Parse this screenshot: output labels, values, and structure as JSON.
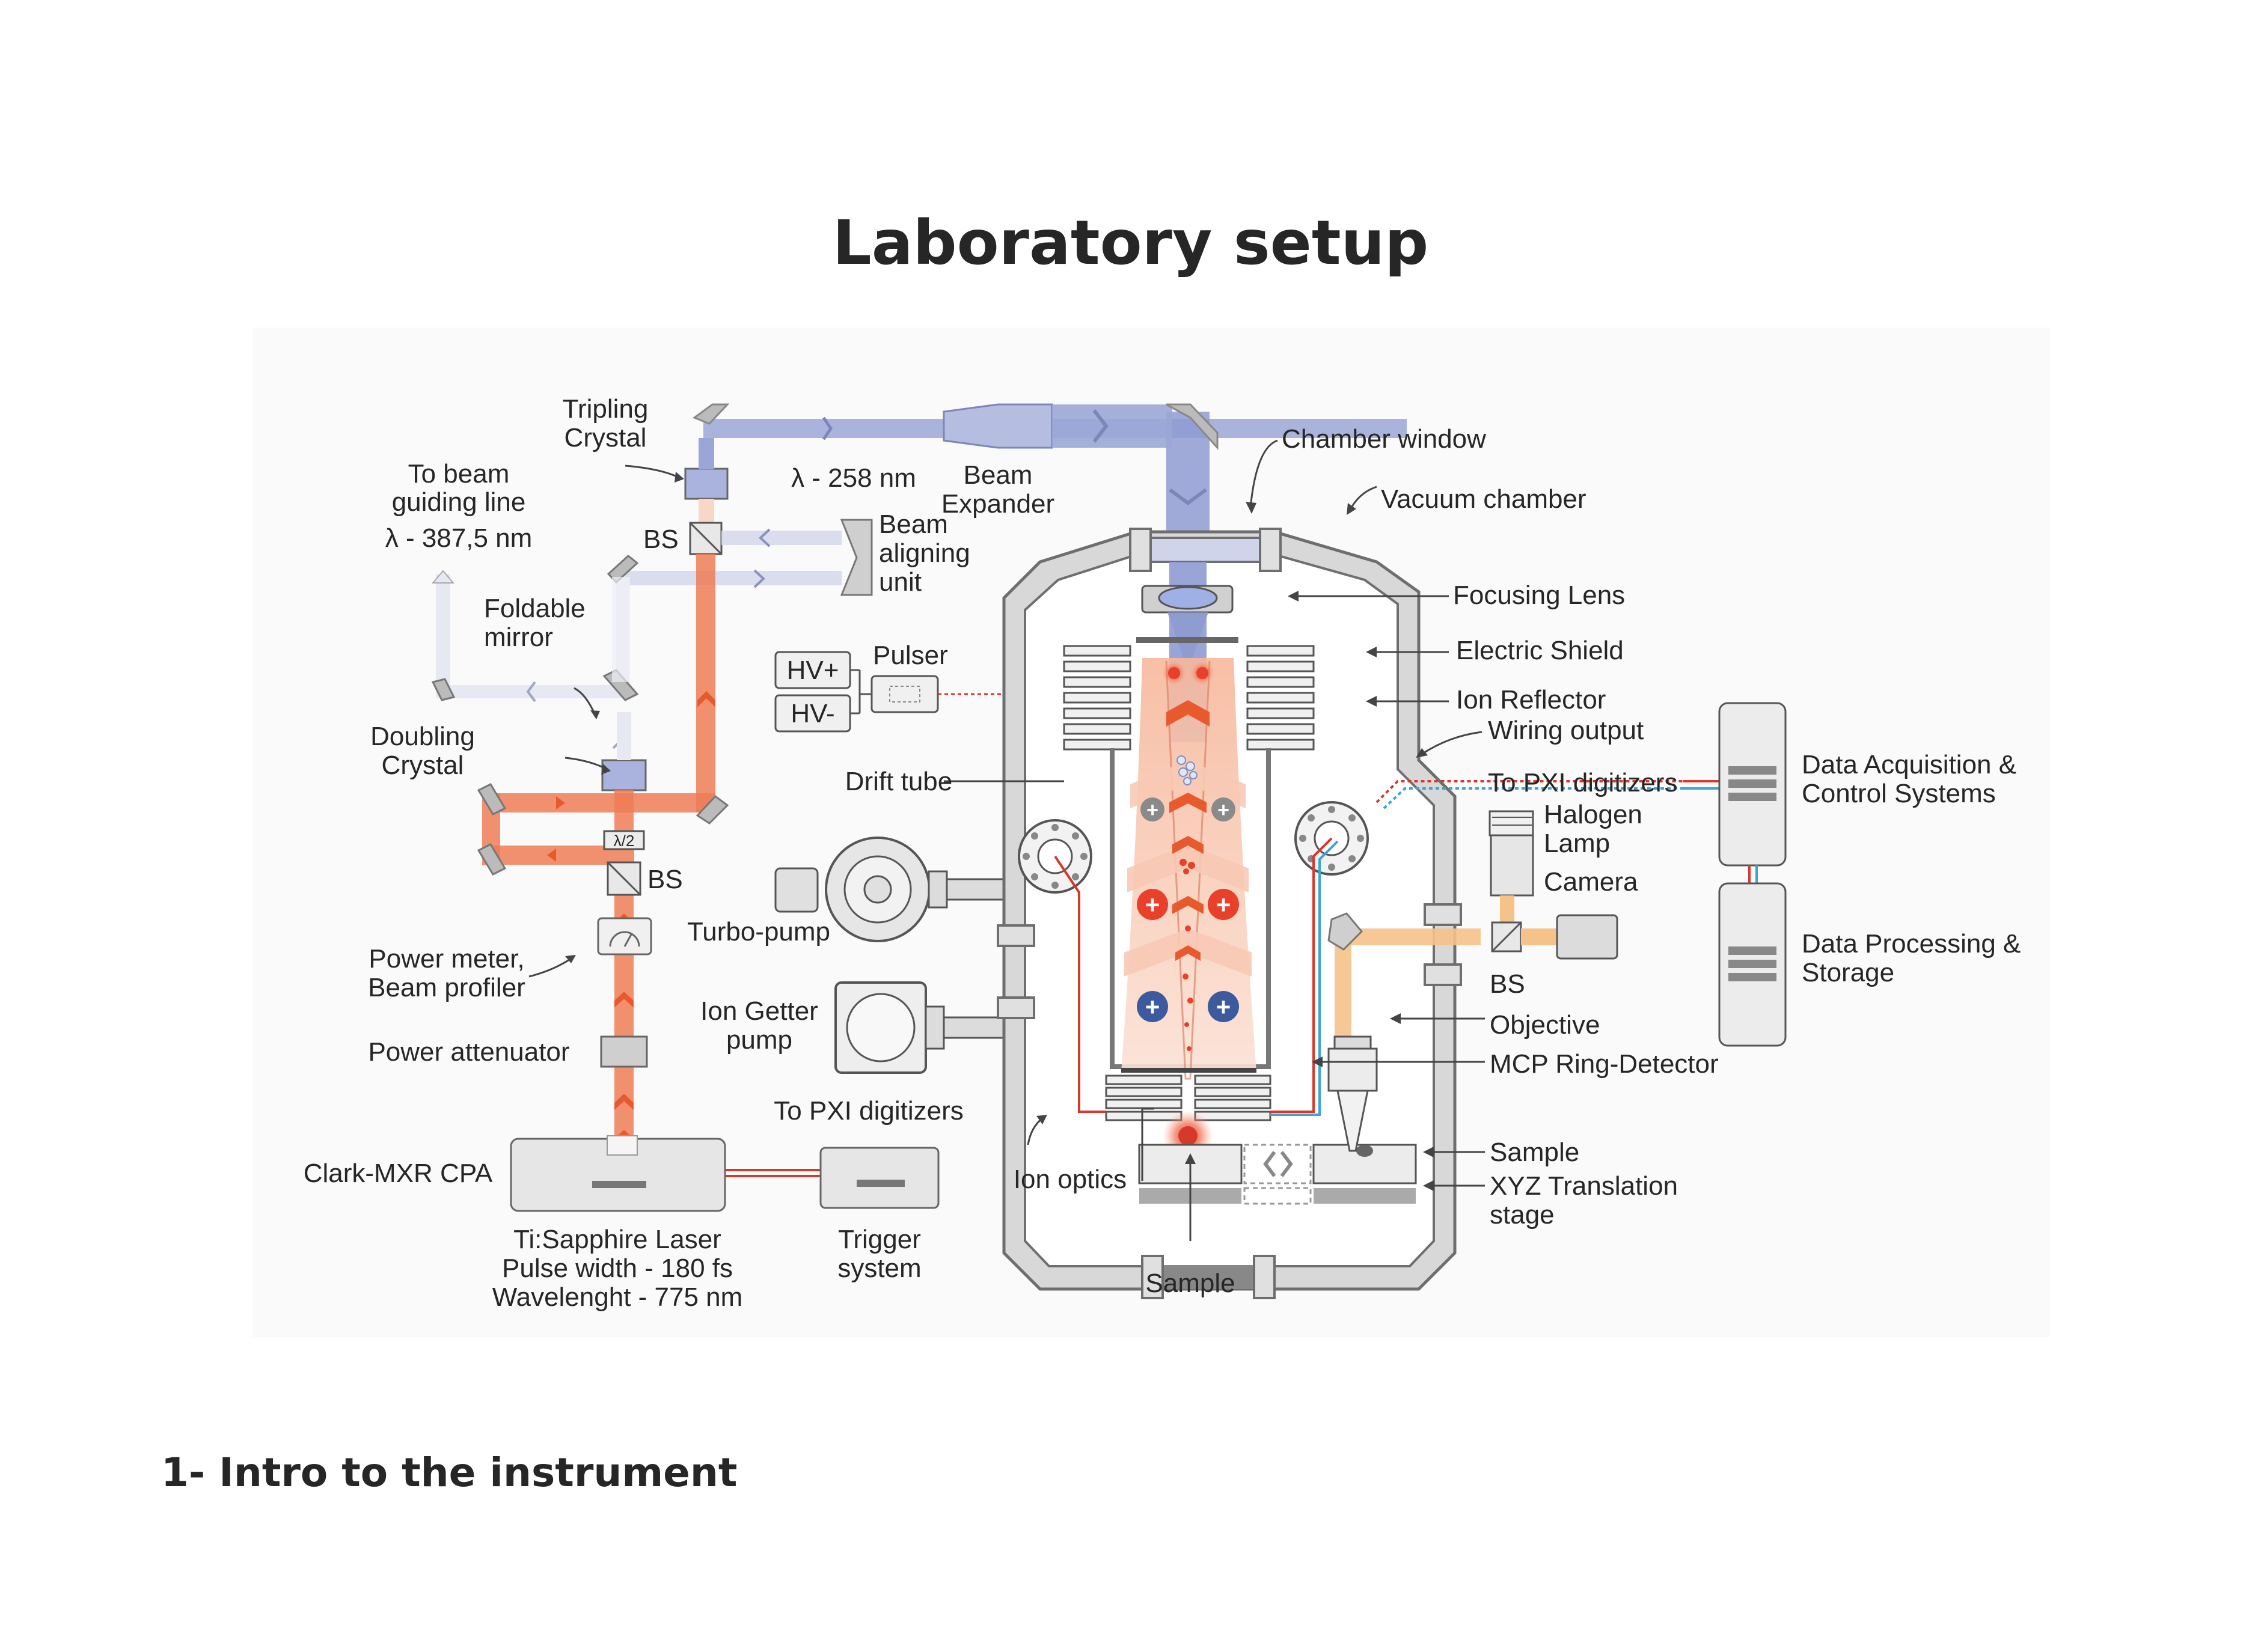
{
  "title": "Laboratory setup",
  "section_heading": "1- Intro to the instrument",
  "colors": {
    "uv_beam": "#9aa6d6",
    "laser_beam": "#ee7d55",
    "beam_arrow": "#e85a2e",
    "frame": "#6e6e6e",
    "chamber_fill": "#dcdcdc",
    "chamber_inner": "#ffffff",
    "ion_plus_red": "#e8402a",
    "ion_plus_blue": "#3d5a9e",
    "ion_plus_gray": "#8a8a8a",
    "wire_red": "#d6392a",
    "wire_blue": "#3ba4d6",
    "camera_beam": "#f5c28a"
  },
  "labels": {
    "tripling_crystal": [
      "Tripling",
      "Crystal"
    ],
    "to_beam_guiding_line": [
      "To beam",
      "guiding line"
    ],
    "lambda_387": "λ - 387,5 nm",
    "lambda_258": "λ - 258 nm",
    "beam_expander": [
      "Beam",
      "Expander"
    ],
    "bs_top": "BS",
    "beam_aligning_unit": [
      "Beam",
      "aligning",
      "unit"
    ],
    "foldable_mirror": [
      "Foldable",
      "mirror"
    ],
    "doubling_crystal": [
      "Doubling",
      "Crystal"
    ],
    "lambda_half": "λ/2",
    "bs_mid": "BS",
    "power_meter": [
      "Power meter,",
      "Beam profiler"
    ],
    "power_attenuator": "Power attenuator",
    "clark_mxr": "Clark-MXR CPA",
    "ti_sapphire": [
      "Ti:Sapphire Laser",
      "Pulse width - 180 fs",
      "Wavelenght - 775 nm"
    ],
    "pulser": "Pulser",
    "hv_plus": "HV+",
    "hv_minus": "HV-",
    "drift_tube": "Drift tube",
    "turbo_pump": "Turbo-pump",
    "ion_getter_pump": [
      "Ion Getter",
      "pump"
    ],
    "to_pxi_lower": "To PXI digitizers",
    "trigger_system": [
      "Trigger",
      "system"
    ],
    "ion_optics": "Ion optics",
    "sample_bottom": "Sample",
    "chamber_window": "Chamber window",
    "vacuum_chamber": "Vacuum chamber",
    "focusing_lens": "Focusing Lens",
    "electric_shield": "Electric Shield",
    "ion_reflector": "Ion Reflector",
    "wiring_output": "Wiring output",
    "to_pxi_upper": "To PXI digitizers",
    "halogen_lamp": [
      "Halogen",
      "Lamp"
    ],
    "camera": "Camera",
    "bs_right": "BS",
    "objective": "Objective",
    "mcp_ring_detector": "MCP Ring-Detector",
    "sample_right": "Sample",
    "xyz_stage": [
      "XYZ Translation",
      "stage"
    ],
    "data_acquisition": [
      "Data Acquisition &",
      "Control Systems"
    ],
    "data_processing": [
      "Data Processing &",
      "Storage"
    ]
  }
}
